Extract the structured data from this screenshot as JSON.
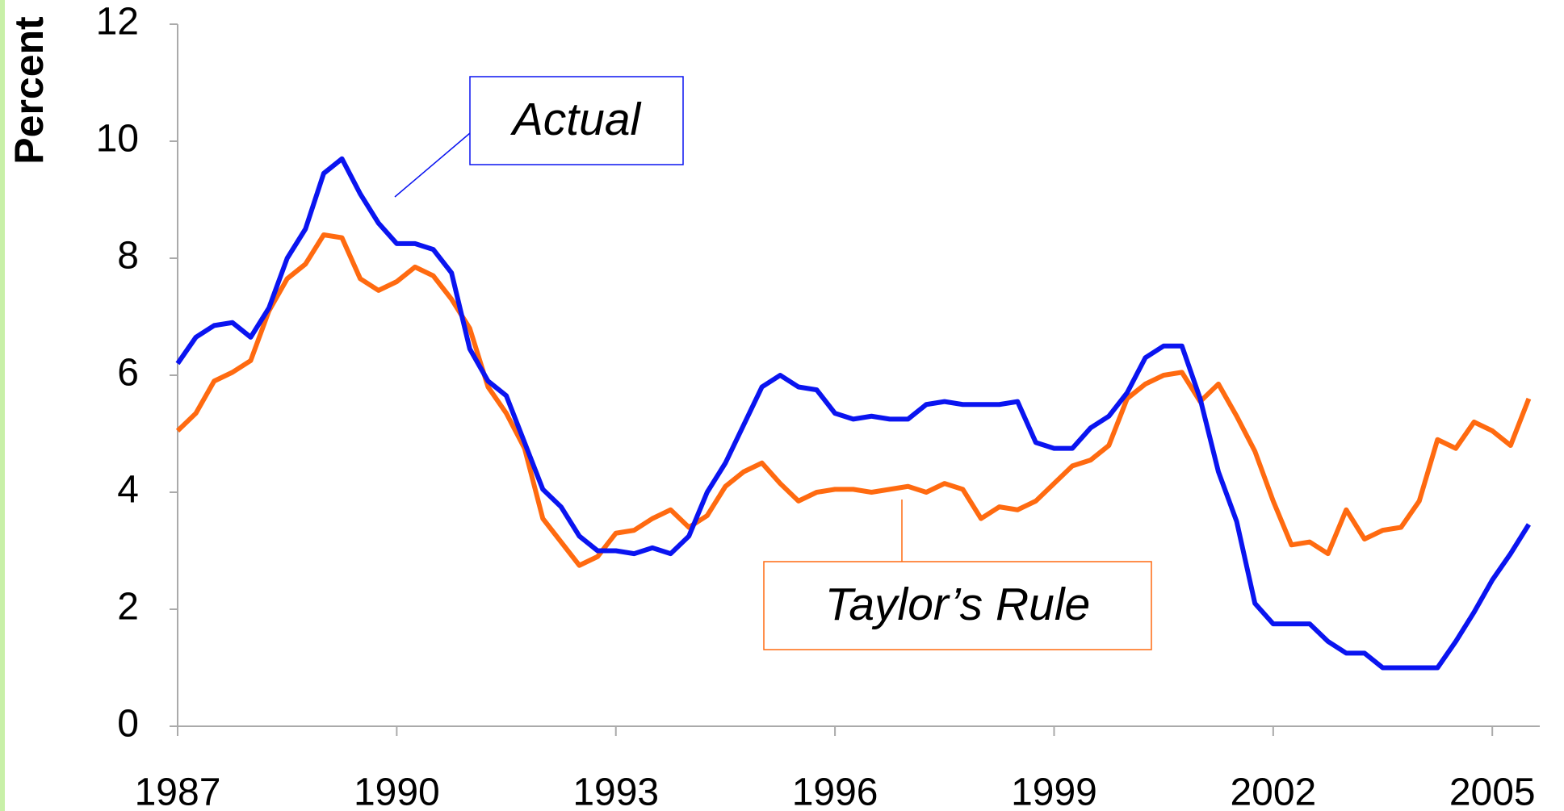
{
  "chart_data": {
    "type": "line",
    "y_label": "Percent",
    "x": [
      1987,
      1987.25,
      1987.5,
      1987.75,
      1988,
      1988.25,
      1988.5,
      1988.75,
      1989,
      1989.25,
      1989.5,
      1989.75,
      1990,
      1990.25,
      1990.5,
      1990.75,
      1991,
      1991.25,
      1991.5,
      1991.75,
      1992,
      1992.25,
      1992.5,
      1992.75,
      1993,
      1993.25,
      1993.5,
      1993.75,
      1994,
      1994.25,
      1994.5,
      1994.75,
      1995,
      1995.25,
      1995.5,
      1995.75,
      1996,
      1996.25,
      1996.5,
      1996.75,
      1997,
      1997.25,
      1997.5,
      1997.75,
      1998,
      1998.25,
      1998.5,
      1998.75,
      1999,
      1999.25,
      1999.5,
      1999.75,
      2000,
      2000.25,
      2000.5,
      2000.75,
      2001,
      2001.25,
      2001.5,
      2001.75,
      2002,
      2002.25,
      2002.5,
      2002.75,
      2003,
      2003.25,
      2003.5,
      2003.75,
      2004,
      2004.25,
      2004.5,
      2004.75,
      2005,
      2005.25,
      2005.5
    ],
    "series": [
      {
        "name": "Actual",
        "color": "#0a14f0",
        "values": [
          6.2,
          6.65,
          6.85,
          6.9,
          6.65,
          7.15,
          8.0,
          8.5,
          9.45,
          9.7,
          9.1,
          8.6,
          8.25,
          8.25,
          8.15,
          7.75,
          6.45,
          5.9,
          5.65,
          4.85,
          4.05,
          3.75,
          3.25,
          3.0,
          3.0,
          2.95,
          3.05,
          2.95,
          3.25,
          4.0,
          4.5,
          5.15,
          5.8,
          6.0,
          5.8,
          5.75,
          5.35,
          5.25,
          5.3,
          5.25,
          5.25,
          5.5,
          5.55,
          5.5,
          5.5,
          5.5,
          5.55,
          4.85,
          4.75,
          4.75,
          5.1,
          5.3,
          5.7,
          6.3,
          6.5,
          6.5,
          5.6,
          4.35,
          3.5,
          2.1,
          1.75,
          1.75,
          1.75,
          1.45,
          1.25,
          1.25,
          1.0,
          1.0,
          1.0,
          1.0,
          1.45,
          1.95,
          2.5,
          2.95,
          3.45
        ]
      },
      {
        "name": "Taylor’s Rule",
        "color": "#ff6a10",
        "values": [
          5.05,
          5.35,
          5.9,
          6.05,
          6.25,
          7.1,
          7.65,
          7.9,
          8.4,
          8.35,
          7.65,
          7.45,
          7.6,
          7.85,
          7.7,
          7.3,
          6.8,
          5.8,
          5.35,
          4.75,
          3.55,
          3.15,
          2.75,
          2.9,
          3.3,
          3.35,
          3.55,
          3.7,
          3.4,
          3.6,
          4.1,
          4.35,
          4.5,
          4.15,
          3.85,
          4.0,
          4.05,
          4.05,
          4.0,
          4.05,
          4.1,
          4.0,
          4.15,
          4.05,
          3.55,
          3.75,
          3.7,
          3.85,
          4.15,
          4.45,
          4.55,
          4.8,
          5.6,
          5.85,
          6.0,
          6.05,
          5.55,
          5.85,
          5.3,
          4.7,
          3.85,
          3.1,
          3.15,
          2.95,
          3.7,
          3.2,
          3.35,
          3.4,
          3.85,
          4.9,
          4.75,
          5.2,
          5.05,
          4.8,
          5.6
        ]
      }
    ],
    "xlim": [
      1987,
      2005.65
    ],
    "xticks": [
      1987,
      1990,
      1993,
      1996,
      1999,
      2002,
      2005
    ],
    "ylim": [
      0,
      12
    ],
    "yticks": [
      0,
      2,
      4,
      6,
      8,
      10,
      12
    ]
  }
}
